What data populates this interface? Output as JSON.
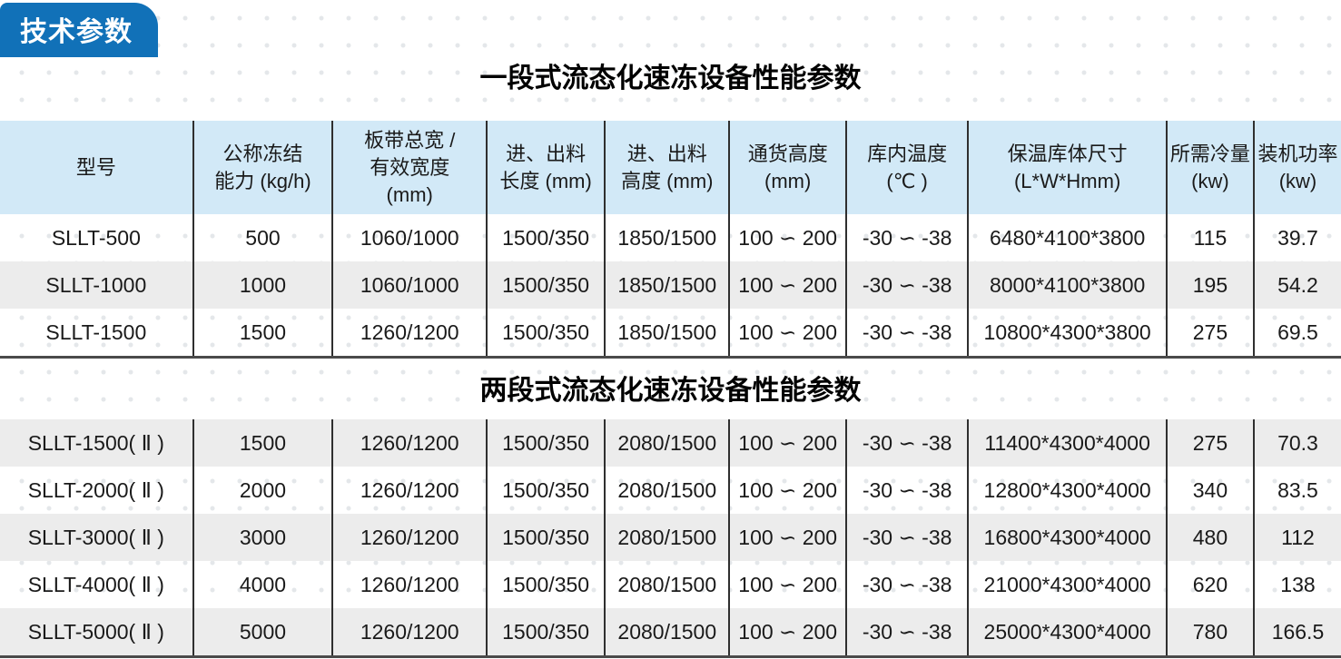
{
  "badge": {
    "label": "技术参数"
  },
  "colors": {
    "badge_blue": "#1171b8",
    "header_blue": "#d2e9f7",
    "zebra_gray": "#ececec",
    "grid_line": "#2f2f2f"
  },
  "sections": [
    {
      "title": "一段式流态化速冻设备性能参数",
      "headers": [
        "型号",
        "公称冻结\n能力 (kg/h)",
        "板带总宽 /\n有效宽度\n(mm)",
        "进、出料\n长度 (mm)",
        "进、出料\n高度 (mm)",
        "通货高度\n(mm)",
        "库内温度\n(℃ )",
        "保温库体尺寸\n(L*W*Hmm)",
        "所需冷量\n(kw)",
        "装机功率\n(kw)"
      ],
      "rows": [
        [
          "SLLT-500",
          "500",
          "1060/1000",
          "1500/350",
          "1850/1500",
          "100 ∽ 200",
          "-30 ∽ -38",
          "6480*4100*3800",
          "115",
          "39.7"
        ],
        [
          "SLLT-1000",
          "1000",
          "1060/1000",
          "1500/350",
          "1850/1500",
          "100 ∽ 200",
          "-30 ∽ -38",
          "8000*4100*3800",
          "195",
          "54.2"
        ],
        [
          "SLLT-1500",
          "1500",
          "1260/1200",
          "1500/350",
          "1850/1500",
          "100 ∽ 200",
          "-30 ∽ -38",
          "10800*4300*3800",
          "275",
          "69.5"
        ]
      ]
    },
    {
      "title": "两段式流态化速冻设备性能参数",
      "rows": [
        [
          "SLLT-1500( Ⅱ )",
          "1500",
          "1260/1200",
          "1500/350",
          "2080/1500",
          "100 ∽ 200",
          "-30 ∽ -38",
          "11400*4300*4000",
          "275",
          "70.3"
        ],
        [
          "SLLT-2000( Ⅱ )",
          "2000",
          "1260/1200",
          "1500/350",
          "2080/1500",
          "100 ∽ 200",
          "-30 ∽ -38",
          "12800*4300*4000",
          "340",
          "83.5"
        ],
        [
          "SLLT-3000( Ⅱ )",
          "3000",
          "1260/1200",
          "1500/350",
          "2080/1500",
          "100 ∽ 200",
          "-30 ∽ -38",
          "16800*4300*4000",
          "480",
          "112"
        ],
        [
          "SLLT-4000( Ⅱ )",
          "4000",
          "1260/1200",
          "1500/350",
          "2080/1500",
          "100 ∽ 200",
          "-30 ∽ -38",
          "21000*4300*4000",
          "620",
          "138"
        ],
        [
          "SLLT-5000( Ⅱ )",
          "5000",
          "1260/1200",
          "1500/350",
          "2080/1500",
          "100 ∽ 200",
          "-30 ∽ -38",
          "25000*4300*4000",
          "780",
          "166.5"
        ]
      ]
    }
  ]
}
